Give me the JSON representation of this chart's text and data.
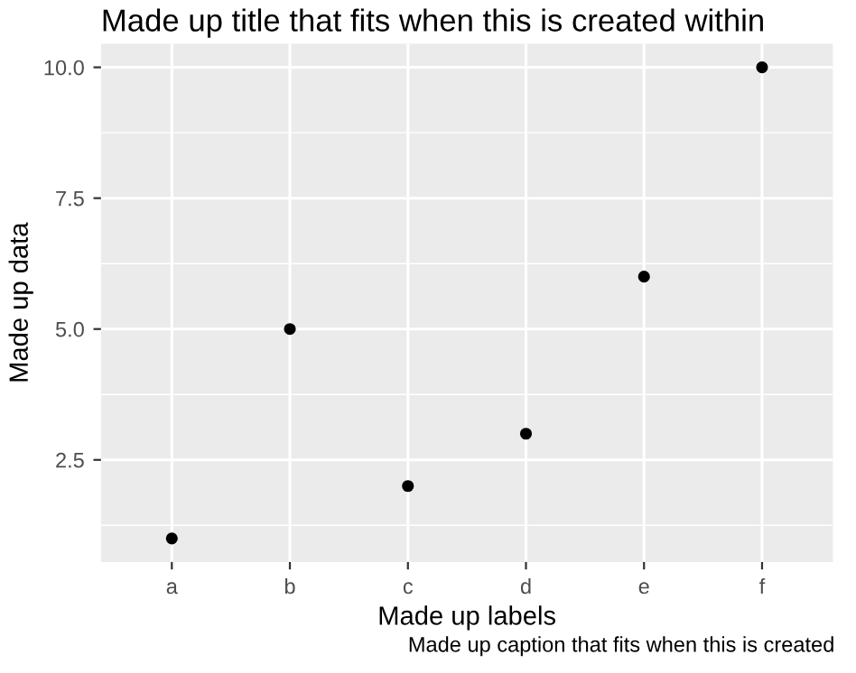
{
  "chart_data": {
    "type": "scatter",
    "title": "Made up title that fits when this is created within",
    "xlabel": "Made up labels",
    "ylabel": "Made up data",
    "annotations": [
      "Made up caption that fits when this is created"
    ],
    "categories": [
      "a",
      "b",
      "c",
      "d",
      "e",
      "f"
    ],
    "values": [
      1,
      5,
      2,
      3,
      6,
      10
    ],
    "color": "#000000",
    "marker": "circle",
    "ylim": [
      0.55,
      10.45
    ],
    "yticks": [
      {
        "value": 2.5,
        "label": "2.5"
      },
      {
        "value": 5,
        "label": "5.0"
      },
      {
        "value": 7.5,
        "label": "7.5"
      },
      {
        "value": 10,
        "label": "10.0"
      }
    ],
    "grid": true
  }
}
